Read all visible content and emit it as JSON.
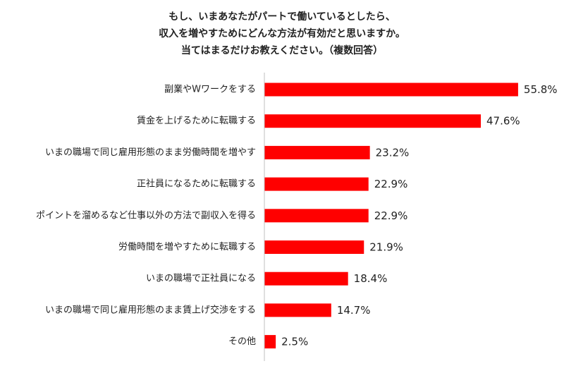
{
  "title": {
    "line1": "もし、いまあなたがパートで働いているとしたら、",
    "line2": "収入を増やすためにどんな方法が有効だと思いますか。",
    "line3": "当てはまるだけお教えください。（複数回答）"
  },
  "chart_data": {
    "type": "bar",
    "orientation": "horizontal",
    "categories": [
      "副業やWワークをする",
      "賃金を上げるために転職する",
      "いまの職場で同じ雇用形態のまま労働時間を増やす",
      "正社員になるために転職する",
      "ポイントを溜めるなど仕事以外の方法で副収入を得る",
      "労働時間を増やすために転職する",
      "いまの職場で正社員になる",
      "いまの職場で同じ雇用形態のまま賃上げ交渉をする",
      "その他"
    ],
    "values": [
      55.8,
      47.6,
      23.2,
      22.9,
      22.9,
      21.9,
      18.4,
      14.7,
      2.5
    ],
    "value_labels": [
      "55.8%",
      "47.6%",
      "23.2%",
      "22.9%",
      "22.9%",
      "21.9%",
      "18.4%",
      "14.7%",
      "2.5%"
    ],
    "unit": "%",
    "bar_color": "#ff0000",
    "axis_color": "#bfbfbf",
    "grid": false,
    "legend": "none"
  }
}
